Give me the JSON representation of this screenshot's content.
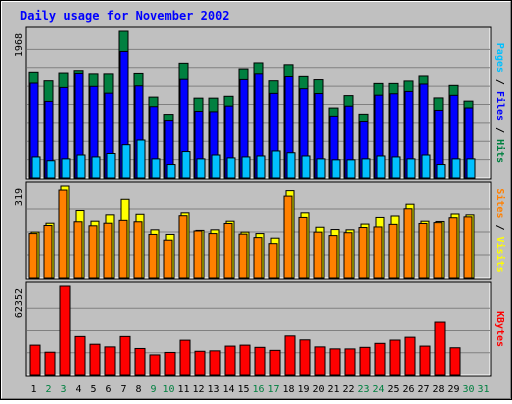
{
  "window": {
    "title": "Daily usage for November 2002"
  },
  "colors": {
    "background": "#c0c0c0",
    "hits": "#008040",
    "files": "#0000ff",
    "pages": "#00c0ff",
    "visits": "#ffff00",
    "sites": "#ff8000",
    "kbytes": "#ff0000",
    "weekday_label": "#000000",
    "weekend_label": "#008040",
    "title": "#0000ff"
  },
  "chart_data": [
    {
      "type": "bar",
      "panel": "top",
      "ymax_label": "1968",
      "ylim": [
        0,
        1968
      ],
      "right_label_parts": [
        {
          "text": "Pages",
          "color": "#00c0ff"
        },
        {
          "text": " / ",
          "color": "#000000"
        },
        {
          "text": "Files",
          "color": "#0000ff"
        },
        {
          "text": " / ",
          "color": "#000000"
        },
        {
          "text": "Hits",
          "color": "#008040"
        }
      ],
      "series": [
        {
          "name": "Hits",
          "values": [
            1415,
            1303,
            1405,
            1436,
            1394,
            1394,
            1968,
            1400,
            1083,
            849,
            1535,
            1069,
            1069,
            1094,
            1458,
            1540,
            1303,
            1515,
            1361,
            1318,
            936,
            1103,
            852,
            1267,
            1267,
            1300,
            1366,
            1072,
            1241,
            1029
          ]
        },
        {
          "name": "Files",
          "values": [
            1272,
            1025,
            1213,
            1400,
            1228,
            1136,
            1694,
            1235,
            954,
            769,
            1323,
            890,
            885,
            962,
            1320,
            1395,
            1133,
            1359,
            1196,
            1131,
            825,
            961,
            756,
            1109,
            1128,
            1159,
            1259,
            904,
            1107,
            937
          ]
        },
        {
          "name": "Pages",
          "values": [
            282,
            231,
            256,
            308,
            282,
            328,
            446,
            509,
            256,
            180,
            354,
            256,
            308,
            269,
            282,
            295,
            362,
            338,
            295,
            256,
            243,
            243,
            256,
            295,
            282,
            256,
            308,
            180,
            256,
            256
          ]
        }
      ]
    },
    {
      "type": "bar",
      "panel": "middle",
      "ymax_label": "319",
      "ylim": [
        0,
        319
      ],
      "right_label_parts": [
        {
          "text": "Sites",
          "color": "#ff8000"
        },
        {
          "text": " / ",
          "color": "#000000"
        },
        {
          "text": "Visits",
          "color": "#ffff00"
        }
      ],
      "series": [
        {
          "name": "Visits",
          "values": [
            159,
            190,
            319,
            234,
            197,
            219,
            273,
            221,
            167,
            151,
            226,
            165,
            167,
            197,
            159,
            154,
            138,
            303,
            226,
            176,
            168,
            167,
            187,
            210,
            215,
            256,
            197,
            196,
            222,
            219
          ]
        },
        {
          "name": "Sites",
          "values": [
            154,
            182,
            305,
            195,
            181,
            190,
            200,
            195,
            151,
            131,
            216,
            163,
            154,
            189,
            152,
            140,
            119,
            284,
            210,
            159,
            147,
            157,
            175,
            177,
            186,
            240,
            189,
            192,
            209,
            212
          ]
        }
      ]
    },
    {
      "type": "bar",
      "panel": "bottom",
      "ymax_label": "62352",
      "ylim": [
        0,
        62352
      ],
      "right_label_parts": [
        {
          "text": "KBytes",
          "color": "#ff0000"
        }
      ],
      "series": [
        {
          "name": "KBytes",
          "values": [
            20950,
            15960,
            62352,
            27070,
            21590,
            19710,
            27070,
            18590,
            14060,
            15800,
            24450,
            16630,
            16930,
            20270,
            20950,
            19400,
            17270,
            27460,
            24680,
            19710,
            18320,
            18290,
            19400,
            22210,
            24520,
            26540,
            20270,
            37100,
            19100,
            0
          ]
        }
      ]
    }
  ],
  "x_axis": {
    "days": [
      "1",
      "2",
      "3",
      "4",
      "5",
      "6",
      "7",
      "8",
      "9",
      "10",
      "11",
      "12",
      "13",
      "14",
      "15",
      "16",
      "17",
      "18",
      "19",
      "20",
      "21",
      "22",
      "23",
      "24",
      "25",
      "26",
      "27",
      "28",
      "29",
      "30",
      "31"
    ],
    "weekend_days": [
      2,
      3,
      9,
      10,
      16,
      17,
      23,
      24,
      30,
      31
    ]
  }
}
